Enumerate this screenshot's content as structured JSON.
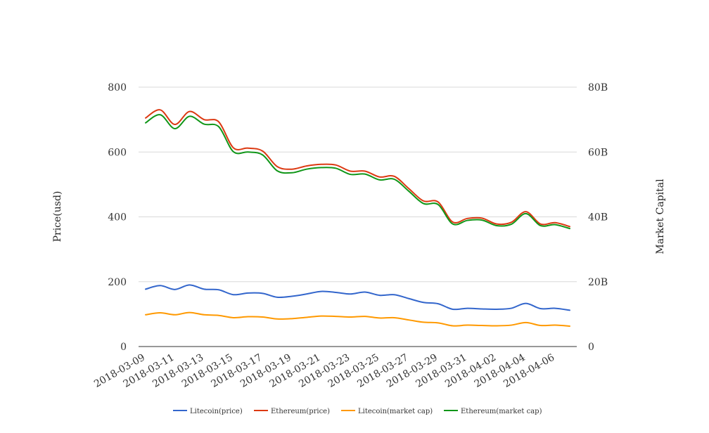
{
  "chart_data": {
    "type": "line",
    "title": "",
    "xlabel": "",
    "ylabel": "Price(usd)",
    "y2label": "Market Capital",
    "ylim": [
      0,
      800
    ],
    "y2lim": [
      0,
      80000000000
    ],
    "yticks": [
      "0",
      "200",
      "400",
      "600",
      "800"
    ],
    "y2ticks": [
      "0",
      "20B",
      "40B",
      "60B",
      "80B"
    ],
    "grid": true,
    "legend_position": "bottom",
    "x": [
      "2018-03-09",
      "2018-03-10",
      "2018-03-11",
      "2018-03-12",
      "2018-03-13",
      "2018-03-14",
      "2018-03-15",
      "2018-03-16",
      "2018-03-17",
      "2018-03-18",
      "2018-03-19",
      "2018-03-20",
      "2018-03-21",
      "2018-03-22",
      "2018-03-23",
      "2018-03-24",
      "2018-03-25",
      "2018-03-26",
      "2018-03-27",
      "2018-03-28",
      "2018-03-29",
      "2018-03-30",
      "2018-03-31",
      "2018-04-01",
      "2018-04-02",
      "2018-04-03",
      "2018-04-04",
      "2018-04-05",
      "2018-04-06",
      "2018-04-07"
    ],
    "xticks": [
      "2018-03-09",
      "2018-03-11",
      "2018-03-13",
      "2018-03-15",
      "2018-03-17",
      "2018-03-19",
      "2018-03-21",
      "2018-03-23",
      "2018-03-25",
      "2018-03-27",
      "2018-03-29",
      "2018-03-31",
      "2018-04-02",
      "2018-04-04",
      "2018-04-06"
    ],
    "series": [
      {
        "name": "Litecoin(price)",
        "color": "#3366cc",
        "axis": "left",
        "values": [
          177,
          188,
          176,
          190,
          177,
          175,
          160,
          165,
          164,
          152,
          155,
          162,
          170,
          167,
          162,
          168,
          158,
          160,
          148,
          136,
          132,
          115,
          118,
          116,
          115,
          118,
          133,
          117,
          118,
          112
        ]
      },
      {
        "name": "Ethereum(price)",
        "color": "#dc3912",
        "axis": "left",
        "values": [
          705,
          730,
          685,
          725,
          700,
          693,
          613,
          612,
          603,
          555,
          547,
          557,
          562,
          560,
          541,
          541,
          523,
          525,
          487,
          449,
          446,
          384,
          395,
          396,
          378,
          383,
          416,
          378,
          382,
          370
        ]
      },
      {
        "name": "Litecoin(market cap)",
        "color": "#ff9900",
        "axis": "right",
        "values": [
          9800000000,
          10400000000,
          9800000000,
          10500000000,
          9800000000,
          9600000000,
          8900000000,
          9200000000,
          9100000000,
          8500000000,
          8600000000,
          9000000000,
          9400000000,
          9300000000,
          9100000000,
          9300000000,
          8800000000,
          8900000000,
          8200000000,
          7500000000,
          7300000000,
          6400000000,
          6600000000,
          6500000000,
          6400000000,
          6600000000,
          7400000000,
          6500000000,
          6600000000,
          6300000000
        ]
      },
      {
        "name": "Ethereum(market cap)",
        "color": "#109618",
        "axis": "right",
        "values": [
          69000000000,
          71500000000,
          67200000000,
          71000000000,
          68600000000,
          67800000000,
          60100000000,
          60000000000,
          59100000000,
          54200000000,
          53600000000,
          54700000000,
          55200000000,
          55000000000,
          53100000000,
          53200000000,
          51400000000,
          51600000000,
          47900000000,
          44100000000,
          43800000000,
          37800000000,
          38900000000,
          39000000000,
          37300000000,
          37700000000,
          41000000000,
          37300000000,
          37600000000,
          36400000000
        ]
      }
    ]
  }
}
